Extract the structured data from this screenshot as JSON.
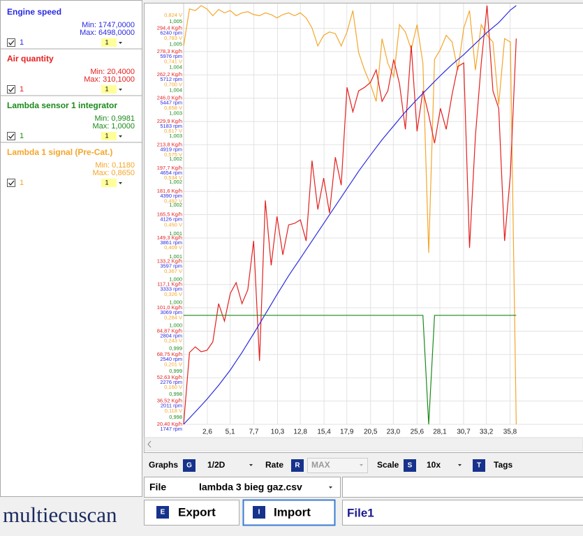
{
  "chart_data": {
    "type": "line",
    "x": [
      0,
      0.64,
      1.28,
      1.92,
      2.56,
      3.2,
      3.84,
      4.48,
      5.12,
      5.76,
      6.4,
      7.04,
      7.68,
      8.32,
      8.96,
      9.6,
      10.24,
      10.88,
      11.52,
      12.16,
      12.8,
      13.44,
      14.08,
      14.72,
      15.36,
      16,
      16.64,
      17.28,
      17.92,
      18.56,
      19.2,
      19.84,
      20.48,
      21.12,
      21.76,
      22.4,
      23.04,
      23.68,
      24.32,
      24.96,
      25.6,
      26.24,
      26.88,
      27.52,
      28.16,
      28.8,
      29.44,
      30.08,
      30.72,
      31.36,
      32,
      32.64,
      33.28,
      33.92,
      34.56,
      35.2,
      35.84,
      36.48
    ],
    "xlim": [
      0,
      43.8
    ],
    "xticks": [
      {
        "value": 2.6,
        "label": "2,6"
      },
      {
        "value": 5.1,
        "label": "5,1"
      },
      {
        "value": 7.7,
        "label": "7,7"
      },
      {
        "value": 10.3,
        "label": "10,3"
      },
      {
        "value": 12.8,
        "label": "12,8"
      },
      {
        "value": 15.4,
        "label": "15,4"
      },
      {
        "value": 17.9,
        "label": "17,9"
      },
      {
        "value": 20.5,
        "label": "20,5"
      },
      {
        "value": 23.0,
        "label": "23,0"
      },
      {
        "value": 25.6,
        "label": "25,6"
      },
      {
        "value": 28.1,
        "label": "28,1"
      },
      {
        "value": 30.7,
        "label": "30,7"
      },
      {
        "value": 33.2,
        "label": "33,2"
      },
      {
        "value": 35.8,
        "label": "35,8"
      }
    ],
    "grid": true,
    "series": [
      {
        "name": "Engine speed",
        "color": "#2a2ae0",
        "min_label": "Min: 1747,0000",
        "max_label": "Max: 6498,0000",
        "checkbox": "1",
        "factor": "1",
        "ylim": [
          1747,
          6498
        ],
        "yticks": [
          {
            "value": 1747,
            "label": "1747 rpm"
          },
          {
            "value": 2011,
            "label": "2011 rpm"
          },
          {
            "value": 2276,
            "label": "2276 rpm"
          },
          {
            "value": 2540,
            "label": "2540 rpm"
          },
          {
            "value": 2804,
            "label": "2804 rpm"
          },
          {
            "value": 3069,
            "label": "3069 rpm"
          },
          {
            "value": 3333,
            "label": "3333 rpm"
          },
          {
            "value": 3597,
            "label": "3597 rpm"
          },
          {
            "value": 3861,
            "label": "3861 rpm"
          },
          {
            "value": 4126,
            "label": "4126 rpm"
          },
          {
            "value": 4390,
            "label": "4390 rpm"
          },
          {
            "value": 4654,
            "label": "4654 rpm"
          },
          {
            "value": 4919,
            "label": "4919 rpm"
          },
          {
            "value": 5183,
            "label": "5183 rpm"
          },
          {
            "value": 5447,
            "label": "5447 rpm"
          },
          {
            "value": 5712,
            "label": "5712 rpm"
          },
          {
            "value": 5976,
            "label": "5976 rpm"
          },
          {
            "value": 6240,
            "label": "6240 rpm"
          }
        ],
        "values": [
          1747,
          1818,
          1889,
          1960,
          2032,
          2111,
          2190,
          2277,
          2364,
          2463,
          2562,
          2669,
          2776,
          2887,
          2997,
          3108,
          3219,
          3326,
          3433,
          3532,
          3630,
          3729,
          3828,
          3927,
          4026,
          4125,
          4224,
          4323,
          4422,
          4520,
          4619,
          4710,
          4801,
          4888,
          4975,
          5055,
          5134,
          5213,
          5292,
          5363,
          5434,
          5502,
          5569,
          5637,
          5704,
          5767,
          5830,
          5886,
          5941,
          6005,
          6068,
          6131,
          6194,
          6250,
          6305,
          6376,
          6447,
          6498
        ]
      },
      {
        "name": "Air quantity",
        "color": "#e3201e",
        "min_label": "Min: 20,4000",
        "max_label": "Max: 310,1000",
        "checkbox": "1",
        "factor": "1",
        "ylim": [
          20.4,
          310.1
        ],
        "yticks": [
          {
            "value": 20.4,
            "label": "20,40 Kg/h"
          },
          {
            "value": 36.52,
            "label": "36,52 Kg/h"
          },
          {
            "value": 52.63,
            "label": "52,63 Kg/h"
          },
          {
            "value": 68.75,
            "label": "68,75 Kg/h"
          },
          {
            "value": 84.87,
            "label": "84,87 Kg/h"
          },
          {
            "value": 101.0,
            "label": "101,0 Kg/h"
          },
          {
            "value": 117.1,
            "label": "117,1 Kg/h"
          },
          {
            "value": 133.2,
            "label": "133,2 Kg/h"
          },
          {
            "value": 149.3,
            "label": "149,3 Kg/h"
          },
          {
            "value": 165.5,
            "label": "165,5 Kg/h"
          },
          {
            "value": 181.6,
            "label": "181,6 Kg/h"
          },
          {
            "value": 197.7,
            "label": "197,7 Kg/h"
          },
          {
            "value": 213.8,
            "label": "213,8 Kg/h"
          },
          {
            "value": 229.9,
            "label": "229,9 Kg/h"
          },
          {
            "value": 246.0,
            "label": "246,0 Kg/h"
          },
          {
            "value": 262.2,
            "label": "262,2 Kg/h"
          },
          {
            "value": 278.3,
            "label": "278,3 Kg/h"
          },
          {
            "value": 294.4,
            "label": "294,4 Kg/h"
          }
        ],
        "values": [
          20.4,
          70.1,
          74.0,
          70.6,
          71.6,
          77.4,
          103.9,
          91.8,
          111.1,
          118.4,
          103.9,
          113.5,
          147.3,
          64.3,
          175.3,
          130.4,
          164.2,
          137.7,
          158.4,
          159.4,
          161.8,
          147.3,
          202.8,
          169.0,
          190.8,
          166.6,
          205.2,
          185.9,
          253.5,
          236.6,
          251.1,
          253.5,
          256.9,
          265.6,
          243.8,
          251.1,
          272.8,
          255.9,
          224.5,
          282.5,
          223.1,
          251.1,
          234.5,
          214.9,
          239.0,
          224.5,
          248.7,
          268.0,
          270.4,
          142.5,
          219.7,
          270.4,
          310.1,
          251.1,
          239.0,
          147.3,
          193.2,
          287.3
        ]
      },
      {
        "name": "Lambda sensor 1 integrator",
        "color": "#1a8a1a",
        "min_label": "Min: 0,9981",
        "max_label": "Max: 1,0000",
        "checkbox": "1",
        "factor": "1",
        "ylim": [
          0.9981,
          1.0054
        ],
        "yticks": [
          {
            "value": 0.9981,
            "label": "0,998"
          },
          {
            "value": 0.9985,
            "label": "0,998"
          },
          {
            "value": 0.9989,
            "label": "0,999"
          },
          {
            "value": 0.9993,
            "label": "0,999"
          },
          {
            "value": 0.9997,
            "label": "1,000"
          },
          {
            "value": 1.0001,
            "label": "1,000"
          },
          {
            "value": 1.0005,
            "label": "1,000"
          },
          {
            "value": 1.0009,
            "label": "1,001"
          },
          {
            "value": 1.0013,
            "label": "1,001"
          },
          {
            "value": 1.0018,
            "label": "1,002"
          },
          {
            "value": 1.0022,
            "label": "1,002"
          },
          {
            "value": 1.0026,
            "label": "1,002"
          },
          {
            "value": 1.003,
            "label": "1,003"
          },
          {
            "value": 1.0034,
            "label": "1,003"
          },
          {
            "value": 1.0038,
            "label": "1,004"
          },
          {
            "value": 1.0042,
            "label": "1,004"
          },
          {
            "value": 1.0046,
            "label": "1,005"
          },
          {
            "value": 1.005,
            "label": "1,005"
          }
        ],
        "values": [
          1.0,
          1.0,
          1.0,
          1.0,
          1.0,
          1.0,
          1.0,
          1.0,
          1.0,
          1.0,
          1.0,
          1.0,
          1.0,
          1.0,
          1.0,
          1.0,
          1.0,
          1.0,
          1.0,
          1.0,
          1.0,
          1.0,
          1.0,
          1.0,
          1.0,
          1.0,
          1.0,
          1.0,
          1.0,
          1.0,
          1.0,
          1.0,
          1.0,
          1.0,
          1.0,
          1.0,
          1.0,
          1.0,
          1.0,
          1.0,
          1.0,
          1.0,
          0.9981,
          1.0,
          1.0,
          1.0,
          1.0,
          1.0,
          1.0,
          1.0,
          1.0,
          1.0,
          1.0,
          1.0,
          1.0,
          1.0,
          1.0,
          1.0
        ]
      },
      {
        "name": "Lambda 1 signal (Pre-Cat.)",
        "color": "#f4a62a",
        "min_label": "Min: 0,1180",
        "max_label": "Max: 0,8650",
        "checkbox": "1",
        "factor": "1",
        "ylim": [
          0.118,
          0.865
        ],
        "yticks": [
          {
            "value": 0.118,
            "label": "0,118 V"
          },
          {
            "value": 0.16,
            "label": "0,160 V"
          },
          {
            "value": 0.201,
            "label": "0,201 V"
          },
          {
            "value": 0.243,
            "label": "0,243 V"
          },
          {
            "value": 0.284,
            "label": "0,284 V"
          },
          {
            "value": 0.326,
            "label": "0,326 V"
          },
          {
            "value": 0.367,
            "label": "0,367 V"
          },
          {
            "value": 0.409,
            "label": "0,409 V"
          },
          {
            "value": 0.45,
            "label": "0,450 V"
          },
          {
            "value": 0.492,
            "label": "0,492 V"
          },
          {
            "value": 0.534,
            "label": "0,534 V"
          },
          {
            "value": 0.575,
            "label": "0,575 V"
          },
          {
            "value": 0.617,
            "label": "0,617 V"
          },
          {
            "value": 0.658,
            "label": "0,658 V"
          },
          {
            "value": 0.7,
            "label": "0,700 V"
          },
          {
            "value": 0.741,
            "label": "0,741 V"
          },
          {
            "value": 0.783,
            "label": "0,783 V"
          },
          {
            "value": 0.824,
            "label": "0,824 V"
          }
        ],
        "values": [
          0.793,
          0.859,
          0.856,
          0.865,
          0.859,
          0.847,
          0.858,
          0.852,
          0.856,
          0.847,
          0.852,
          0.854,
          0.849,
          0.847,
          0.852,
          0.849,
          0.843,
          0.849,
          0.852,
          0.847,
          0.852,
          0.843,
          0.825,
          0.793,
          0.812,
          0.818,
          0.815,
          0.793,
          0.818,
          0.856,
          0.781,
          0.75,
          0.725,
          0.694,
          0.806,
          0.762,
          0.738,
          0.831,
          0.818,
          0.787,
          0.831,
          0.762,
          0.424,
          0.769,
          0.787,
          0.812,
          0.8,
          0.75,
          0.825,
          0.856,
          0.75,
          0.831,
          0.812,
          0.8,
          0.688,
          0.806,
          0.8,
          0.118
        ]
      }
    ]
  },
  "toolbar": {
    "graphs_label": "Graphs",
    "graphs_key": "G",
    "graphs_value": "1/2D",
    "rate_label": "Rate",
    "rate_key": "R",
    "rate_value": "MAX",
    "scale_label": "Scale",
    "scale_key": "S",
    "scale_value": "10x",
    "tags_key": "T",
    "tags_label": "Tags"
  },
  "file": {
    "label": "File",
    "name": "lambda 3 bieg gaz.csv",
    "export_key": "E",
    "export_label": "Export",
    "import_key": "I",
    "import_label": "Import",
    "field": "File1"
  },
  "logo": "multiecuscan"
}
